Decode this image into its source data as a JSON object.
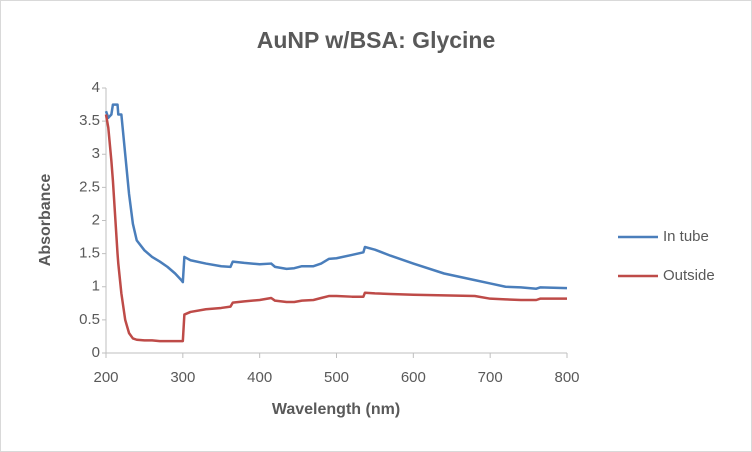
{
  "chart_data": {
    "type": "line",
    "title": "AuNP w/BSA: Glycine",
    "x_label": "Wavelength (nm)",
    "y_label": "Absorbance",
    "x": [
      200,
      203,
      207,
      209,
      215,
      216,
      220,
      225,
      230,
      235,
      240,
      250,
      260,
      270,
      280,
      290,
      298,
      300,
      302,
      310,
      330,
      350,
      362,
      365,
      380,
      400,
      415,
      420,
      435,
      445,
      455,
      470,
      480,
      490,
      500,
      520,
      535,
      537,
      550,
      570,
      600,
      640,
      680,
      700,
      720,
      740,
      760,
      765,
      800
    ],
    "series": [
      {
        "name": "In tube",
        "color": "#4a7ebb",
        "values": [
          3.65,
          3.55,
          3.6,
          3.75,
          3.75,
          3.6,
          3.6,
          3.0,
          2.4,
          1.95,
          1.7,
          1.55,
          1.45,
          1.38,
          1.3,
          1.2,
          1.1,
          1.07,
          1.45,
          1.4,
          1.35,
          1.31,
          1.3,
          1.38,
          1.36,
          1.34,
          1.35,
          1.3,
          1.27,
          1.28,
          1.31,
          1.31,
          1.35,
          1.42,
          1.43,
          1.48,
          1.52,
          1.6,
          1.56,
          1.47,
          1.35,
          1.2,
          1.1,
          1.05,
          1.0,
          0.99,
          0.97,
          0.99,
          0.98
        ]
      },
      {
        "name": "Outside",
        "color": "#be4b48",
        "values": [
          3.6,
          3.4,
          2.9,
          2.6,
          1.5,
          1.35,
          0.9,
          0.5,
          0.3,
          0.22,
          0.2,
          0.19,
          0.19,
          0.18,
          0.18,
          0.18,
          0.18,
          0.18,
          0.58,
          0.62,
          0.66,
          0.68,
          0.7,
          0.76,
          0.78,
          0.8,
          0.83,
          0.79,
          0.77,
          0.77,
          0.79,
          0.8,
          0.83,
          0.86,
          0.86,
          0.85,
          0.85,
          0.91,
          0.9,
          0.89,
          0.88,
          0.87,
          0.86,
          0.82,
          0.81,
          0.8,
          0.8,
          0.82,
          0.82
        ]
      }
    ],
    "xlim": [
      200,
      800
    ],
    "xticks": [
      200,
      300,
      400,
      500,
      600,
      700,
      800
    ],
    "ylim": [
      0,
      4
    ],
    "yticks": [
      0,
      0.5,
      1,
      1.5,
      2,
      2.5,
      3,
      3.5,
      4
    ],
    "grid": false,
    "legend": "right"
  }
}
